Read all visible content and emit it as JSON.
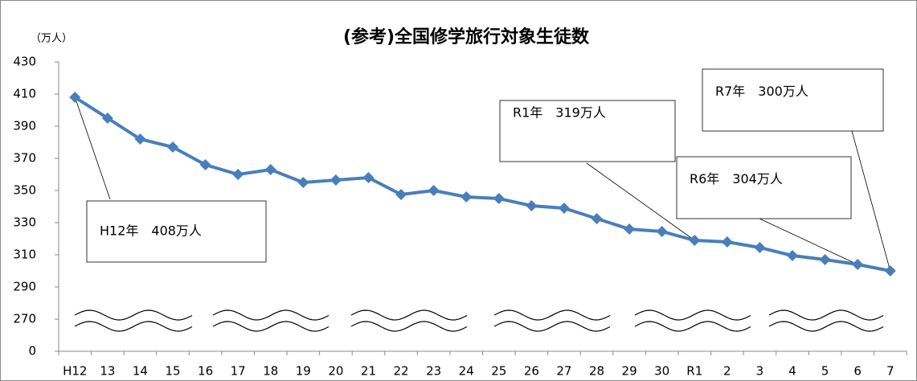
{
  "chart_data": {
    "type": "line",
    "title": "(参考)全国修学旅行対象生徒数",
    "y_axis_label": "（万人）",
    "categories": [
      "H12",
      "13",
      "14",
      "15",
      "16",
      "17",
      "18",
      "19",
      "20",
      "21",
      "22",
      "23",
      "24",
      "25",
      "26",
      "27",
      "28",
      "29",
      "30",
      "R1",
      "2",
      "3",
      "4",
      "5",
      "6",
      "7"
    ],
    "series": [
      {
        "name": "全国修学旅行対象生徒数",
        "color": "#4a7ebb",
        "values": [
          408,
          395,
          382,
          377,
          366,
          360,
          363,
          355,
          356.5,
          358,
          347.5,
          350,
          346,
          345,
          340.5,
          339,
          332.5,
          326,
          324.5,
          319,
          318,
          314.5,
          309.5,
          307,
          304,
          300
        ]
      }
    ],
    "ylim": [
      0,
      430
    ],
    "yticks": [
      0,
      270,
      290,
      310,
      330,
      350,
      370,
      390,
      410,
      430
    ],
    "axis_break": true,
    "grid": false,
    "annotations": [
      "H12年　408万人",
      "R1年　319万人",
      "R6年　304万人",
      "R7年　300万人"
    ]
  }
}
